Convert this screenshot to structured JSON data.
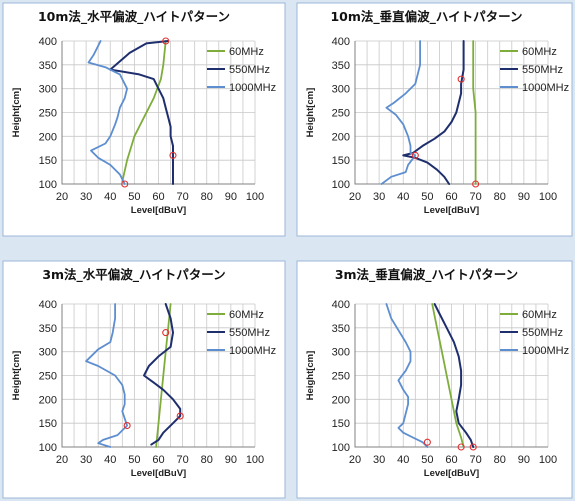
{
  "colors": {
    "s60": "#7fad3c",
    "s550": "#1f2f6e",
    "s1000": "#5d8ed0",
    "marker": "#e03030",
    "panel_bg": "#dbe6f3",
    "panel_border": "#9bb7d8"
  },
  "chart_data": [
    {
      "type": "line",
      "title": "10m法_水平偏波_ハイトパターン",
      "xlabel": "Level[dBuV]",
      "ylabel": "Height[cm]",
      "xlim": [
        20,
        100
      ],
      "ylim": [
        100,
        400
      ],
      "xticks": [
        20,
        30,
        40,
        50,
        60,
        70,
        80,
        90,
        100
      ],
      "yticks": [
        100,
        150,
        200,
        250,
        300,
        350,
        400
      ],
      "legend": "right",
      "series": [
        {
          "name": "60MHz",
          "color": "#7fad3c",
          "points": [
            [
              63,
              400
            ],
            [
              62,
              350
            ],
            [
              61,
              320
            ],
            [
              58,
              280
            ],
            [
              54,
              240
            ],
            [
              50,
              200
            ],
            [
              47,
              150
            ],
            [
              45,
              105
            ]
          ]
        },
        {
          "name": "550MHz",
          "color": "#1f2f6e",
          "points": [
            [
              64,
              400
            ],
            [
              55,
              395
            ],
            [
              48,
              375
            ],
            [
              40,
              340
            ],
            [
              52,
              330
            ],
            [
              58,
              320
            ],
            [
              60,
              300
            ],
            [
              62,
              280
            ],
            [
              63,
              260
            ],
            [
              64,
              240
            ],
            [
              65,
              220
            ],
            [
              65,
              200
            ],
            [
              66,
              180
            ],
            [
              66,
              160
            ],
            [
              66,
              140
            ],
            [
              66,
              120
            ],
            [
              66,
              100
            ]
          ]
        },
        {
          "name": "1000MHz",
          "color": "#5d8ed0",
          "points": [
            [
              36,
              400
            ],
            [
              33,
              370
            ],
            [
              31,
              355
            ],
            [
              38,
              345
            ],
            [
              44,
              330
            ],
            [
              47,
              300
            ],
            [
              46,
              280
            ],
            [
              44,
              260
            ],
            [
              43,
              240
            ],
            [
              42,
              225
            ],
            [
              40,
              200
            ],
            [
              38,
              185
            ],
            [
              32,
              170
            ],
            [
              35,
              155
            ],
            [
              40,
              140
            ],
            [
              44,
              120
            ],
            [
              46,
              100
            ]
          ]
        }
      ],
      "markers": [
        [
          63,
          400
        ],
        [
          66,
          160
        ],
        [
          46,
          100
        ]
      ]
    },
    {
      "type": "line",
      "title": "10m法_垂直偏波_ハイトパターン",
      "xlabel": "Level[dBuV]",
      "ylabel": "Height[cm]",
      "xlim": [
        20,
        100
      ],
      "ylim": [
        100,
        400
      ],
      "xticks": [
        20,
        30,
        40,
        50,
        60,
        70,
        80,
        90,
        100
      ],
      "yticks": [
        100,
        150,
        200,
        250,
        300,
        350,
        400
      ],
      "legend": "right",
      "series": [
        {
          "name": "60MHz",
          "color": "#7fad3c",
          "points": [
            [
              69,
              400
            ],
            [
              69,
              350
            ],
            [
              69,
              300
            ],
            [
              70,
              250
            ],
            [
              70,
              200
            ],
            [
              70,
              150
            ],
            [
              70,
              100
            ]
          ]
        },
        {
          "name": "550MHz",
          "color": "#1f2f6e",
          "points": [
            [
              65,
              400
            ],
            [
              65,
              370
            ],
            [
              65,
              340
            ],
            [
              64,
              310
            ],
            [
              64,
              290
            ],
            [
              63,
              270
            ],
            [
              62,
              250
            ],
            [
              60,
              230
            ],
            [
              57,
              210
            ],
            [
              53,
              195
            ],
            [
              48,
              180
            ],
            [
              44,
              165
            ],
            [
              40,
              160
            ],
            [
              45,
              155
            ],
            [
              50,
              145
            ],
            [
              54,
              130
            ],
            [
              57,
              115
            ],
            [
              59,
              100
            ]
          ]
        },
        {
          "name": "1000MHz",
          "color": "#5d8ed0",
          "points": [
            [
              47,
              400
            ],
            [
              47,
              350
            ],
            [
              45,
              310
            ],
            [
              41,
              290
            ],
            [
              36,
              270
            ],
            [
              33,
              260
            ],
            [
              37,
              245
            ],
            [
              40,
              225
            ],
            [
              42,
              200
            ],
            [
              43,
              180
            ],
            [
              43,
              165
            ],
            [
              45,
              160
            ],
            [
              42,
              140
            ],
            [
              41,
              125
            ],
            [
              35,
              115
            ],
            [
              31,
              100
            ]
          ]
        }
      ],
      "markers": [
        [
          64,
          320
        ],
        [
          45,
          160
        ],
        [
          70,
          100
        ]
      ]
    },
    {
      "type": "line",
      "title": "3m法_水平偏波_ハイトパターン",
      "xlabel": "Level[dBuV]",
      "ylabel": "Height[cm]",
      "xlim": [
        20,
        100
      ],
      "ylim": [
        100,
        400
      ],
      "xticks": [
        20,
        30,
        40,
        50,
        60,
        70,
        80,
        90,
        100
      ],
      "yticks": [
        100,
        150,
        200,
        250,
        300,
        350,
        400
      ],
      "legend": "right",
      "series": [
        {
          "name": "60MHz",
          "color": "#7fad3c",
          "points": [
            [
              65,
              400
            ],
            [
              64,
              350
            ],
            [
              63,
              300
            ],
            [
              62,
              250
            ],
            [
              61,
              200
            ],
            [
              60,
              150
            ],
            [
              59,
              100
            ]
          ]
        },
        {
          "name": "550MHz",
          "color": "#1f2f6e",
          "points": [
            [
              63,
              400
            ],
            [
              65,
              370
            ],
            [
              66,
              340
            ],
            [
              65,
              310
            ],
            [
              60,
              290
            ],
            [
              56,
              270
            ],
            [
              54,
              250
            ],
            [
              58,
              235
            ],
            [
              62,
              220
            ],
            [
              66,
              200
            ],
            [
              69,
              180
            ],
            [
              69,
              165
            ],
            [
              66,
              150
            ],
            [
              62,
              130
            ],
            [
              60,
              115
            ],
            [
              57,
              105
            ]
          ]
        },
        {
          "name": "1000MHz",
          "color": "#5d8ed0",
          "points": [
            [
              42,
              400
            ],
            [
              42,
              370
            ],
            [
              41,
              340
            ],
            [
              40,
              320
            ],
            [
              35,
              305
            ],
            [
              30,
              280
            ],
            [
              35,
              270
            ],
            [
              42,
              250
            ],
            [
              45,
              230
            ],
            [
              46,
              210
            ],
            [
              46,
              190
            ],
            [
              45,
              175
            ],
            [
              46,
              160
            ],
            [
              47,
              145
            ],
            [
              43,
              125
            ],
            [
              37,
              115
            ],
            [
              35,
              108
            ],
            [
              40,
              100
            ]
          ]
        }
      ],
      "markers": [
        [
          63,
          340
        ],
        [
          69,
          165
        ],
        [
          47,
          145
        ]
      ]
    },
    {
      "type": "line",
      "title": "3m法_垂直偏波_ハイトパターン",
      "xlabel": "Level[dBuV]",
      "ylabel": "Height[cm]",
      "xlim": [
        20,
        100
      ],
      "ylim": [
        100,
        400
      ],
      "xticks": [
        20,
        30,
        40,
        50,
        60,
        70,
        80,
        90,
        100
      ],
      "yticks": [
        100,
        150,
        200,
        250,
        300,
        350,
        400
      ],
      "legend": "right",
      "series": [
        {
          "name": "60MHz",
          "color": "#7fad3c",
          "points": [
            [
              52,
              400
            ],
            [
              54,
              350
            ],
            [
              56,
              300
            ],
            [
              58,
              250
            ],
            [
              60,
              200
            ],
            [
              62,
              150
            ],
            [
              64,
              120
            ],
            [
              65,
              100
            ]
          ]
        },
        {
          "name": "550MHz",
          "color": "#1f2f6e",
          "points": [
            [
              53,
              400
            ],
            [
              55,
              380
            ],
            [
              58,
              350
            ],
            [
              61,
              320
            ],
            [
              63,
              290
            ],
            [
              64,
              260
            ],
            [
              64,
              230
            ],
            [
              63,
              200
            ],
            [
              62,
              175
            ],
            [
              63,
              150
            ],
            [
              66,
              130
            ],
            [
              68,
              115
            ],
            [
              69,
              100
            ]
          ]
        },
        {
          "name": "1000MHz",
          "color": "#5d8ed0",
          "points": [
            [
              33,
              400
            ],
            [
              35,
              370
            ],
            [
              38,
              345
            ],
            [
              41,
              320
            ],
            [
              43,
              300
            ],
            [
              43,
              280
            ],
            [
              41,
              260
            ],
            [
              38,
              240
            ],
            [
              40,
              220
            ],
            [
              42,
              205
            ],
            [
              42,
              190
            ],
            [
              41,
              170
            ],
            [
              40,
              150
            ],
            [
              38,
              140
            ],
            [
              40,
              130
            ],
            [
              44,
              120
            ],
            [
              48,
              110
            ],
            [
              50,
              100
            ]
          ]
        }
      ],
      "markers": [
        [
          50,
          110
        ],
        [
          64,
          100
        ],
        [
          69,
          100
        ]
      ]
    }
  ]
}
